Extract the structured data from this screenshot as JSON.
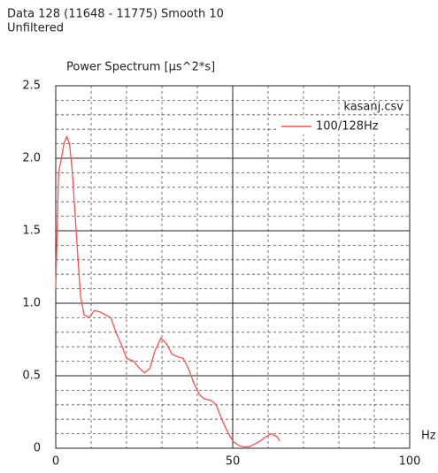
{
  "chart_data": {
    "type": "line",
    "title": "Data 128 (11648 - 11775)  Smooth 10",
    "subtitle": "Unfiltered",
    "y_label": "Power Spectrum [μs^2*s]",
    "x_label": "Hz",
    "legend_title": "kasanj.csv",
    "legend": "upper right",
    "grid": true,
    "x": [
      0,
      0.8,
      1.6,
      2.3,
      3.1,
      3.9,
      4.7,
      5.5,
      6.3,
      7,
      8,
      9.4,
      10.9,
      12.5,
      14,
      15.6,
      17,
      18.8,
      20,
      22,
      23.4,
      25,
      26.6,
      28,
      29.7,
      31.3,
      32.8,
      34.4,
      36,
      37.5,
      39,
      40.6,
      42,
      43.8,
      45.3,
      46.9,
      48.4,
      50,
      51.6,
      53,
      54.7,
      56.3,
      57.8,
      59.4,
      60.9,
      62.5,
      63.3
    ],
    "series": [
      {
        "name": "100/128Hz",
        "color": "#ff5050",
        "values": [
          1.1,
          1.9,
          2.0,
          2.1,
          2.15,
          2.1,
          1.9,
          1.6,
          1.3,
          1.05,
          0.92,
          0.9,
          0.95,
          0.94,
          0.92,
          0.9,
          0.8,
          0.7,
          0.62,
          0.6,
          0.56,
          0.52,
          0.55,
          0.67,
          0.76,
          0.72,
          0.65,
          0.63,
          0.62,
          0.55,
          0.45,
          0.37,
          0.34,
          0.33,
          0.3,
          0.2,
          0.12,
          0.05,
          0.02,
          0.01,
          0.01,
          0.03,
          0.05,
          0.08,
          0.1,
          0.08,
          0.05
        ]
      }
    ],
    "xlim": [
      0,
      100
    ],
    "xticks": [
      0,
      50,
      100
    ],
    "ylim": [
      0,
      2.5
    ],
    "yticks": [
      0,
      0.5,
      {
        "value": 1,
        "label": "1.0"
      },
      1.5,
      {
        "value": 2,
        "label": "2.0"
      },
      2.5
    ]
  }
}
